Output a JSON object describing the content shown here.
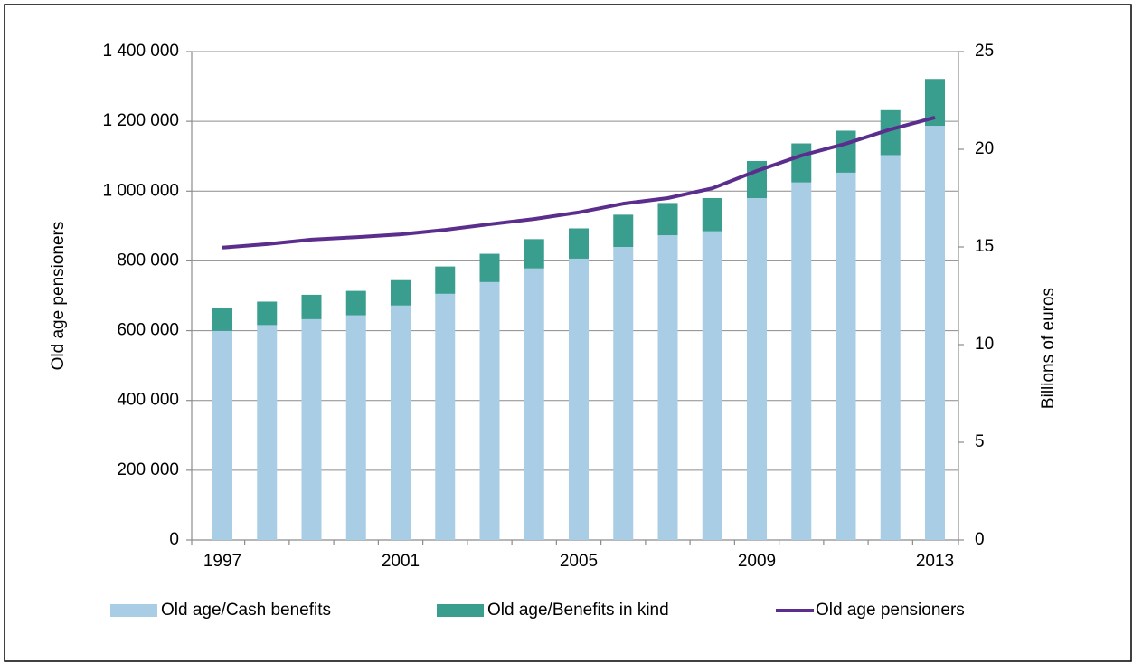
{
  "chart_data": {
    "type": "bar_line",
    "categories": [
      "1997",
      null,
      null,
      null,
      "2001",
      null,
      null,
      null,
      "2005",
      null,
      null,
      null,
      "2009",
      null,
      null,
      null,
      "2013"
    ],
    "ylabel": "Old age pensioners",
    "y2label": "Billions of euros",
    "ylim": [
      0,
      1400000
    ],
    "yticks": [
      0,
      {
        "value": 200000,
        "label": "200 000"
      },
      {
        "value": 400000,
        "label": "400 000"
      },
      {
        "value": 600000,
        "label": "600 000"
      },
      {
        "value": 800000,
        "label": "800 000"
      },
      {
        "value": 1000000,
        "label": "1 000 000"
      },
      {
        "value": 1200000,
        "label": "1 200 000"
      },
      {
        "value": 1400000,
        "label": "1 400 000"
      }
    ],
    "y2lim": [
      0,
      25
    ],
    "y2ticks": [
      0,
      5,
      10,
      15,
      20,
      25
    ],
    "grid": true,
    "legend": "bottom",
    "series": [
      {
        "name": "Old age/Cash benefits",
        "type": "bar",
        "stack": true,
        "axis": "y2",
        "color": "#a9cde5",
        "values": [
          10.7,
          11.0,
          11.3,
          11.5,
          12.0,
          12.6,
          13.2,
          13.9,
          14.4,
          15.0,
          15.6,
          15.8,
          17.5,
          18.3,
          18.8,
          19.7,
          21.2
        ]
      },
      {
        "name": "Old age/Benefits in kind",
        "type": "bar",
        "stack": true,
        "axis": "y2",
        "color": "#3a9e8f",
        "values": [
          1.2,
          1.2,
          1.25,
          1.25,
          1.3,
          1.4,
          1.45,
          1.5,
          1.55,
          1.65,
          1.65,
          1.7,
          1.9,
          2.0,
          2.15,
          2.3,
          2.4
        ]
      },
      {
        "name": "Old age pensioners",
        "type": "line",
        "axis": "y",
        "color": "#5b2e8e",
        "values": [
          838000,
          848000,
          861000,
          868000,
          876000,
          889000,
          905000,
          920000,
          939000,
          964000,
          980000,
          1008000,
          1058000,
          1102000,
          1136000,
          1177000,
          1211000
        ]
      }
    ]
  }
}
